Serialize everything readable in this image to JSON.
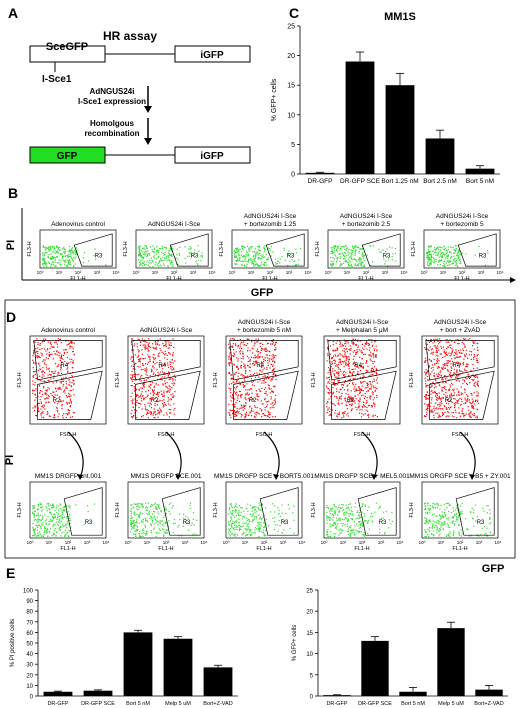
{
  "panels": {
    "A": {
      "label": "A",
      "title": "HR assay",
      "top_left": "SceGFP",
      "top_right": "iGFP",
      "site": "I-Sce1",
      "step1_line1": "AdNGUS24i",
      "step1_line2": "I-Sce1 expression",
      "step2_line1": "Homolgous",
      "step2_line2": "recombination",
      "bottom_left": "GFP",
      "bottom_right": "iGFP",
      "colors": {
        "gfp": "#22dd22",
        "outline": "#000000"
      }
    },
    "B": {
      "label": "B",
      "y_axis": "PI",
      "x_axis": "GFP",
      "plots": [
        {
          "title1": "Adenovirus control",
          "title2": "",
          "level": 0.15
        },
        {
          "title1": "AdNGUS24i I-Sce",
          "title2": "",
          "level": 0.55
        },
        {
          "title1": "AdNGUS24i I-Sce",
          "title2": "+ bortezomib 1.25",
          "level": 0.45
        },
        {
          "title1": "AdNGUS24i I-Sce",
          "title2": "+ bortezomib 2.5",
          "level": 0.3
        },
        {
          "title1": "AdNGUS24i I-Sce",
          "title2": "+ bortezomib 5",
          "level": 0.12
        }
      ],
      "gate": "R3",
      "ylabel": "FL3-H",
      "xlabel": "FL1-H",
      "ticks": [
        "10⁰",
        "10¹",
        "10²",
        "10³",
        "10⁴"
      ],
      "dot_color": "#33dd33"
    },
    "D": {
      "label": "D",
      "y_axis": "PI",
      "x_axis": "GFP",
      "top_plots": [
        {
          "title1": "Adenovirus control",
          "title2": ""
        },
        {
          "title1": "AdNGUS24i I-Sce",
          "title2": ""
        },
        {
          "title1": "AdNGUS24i I-Sce",
          "title2": "+ bortezomib 5 nM"
        },
        {
          "title1": "AdNGUS24i I-Sce",
          "title2": "+ Melphalan 5 μM"
        },
        {
          "title1": "AdNGUS24i I-Sce",
          "title2": "+ bort + ZvAD"
        }
      ],
      "bottom_titles": [
        "MM1S DRGFP cnt.001",
        "MM1S DRGFP SCE.001",
        "MM1S DRGFP SCE + BORT5.001",
        "MM1S DRGFP SCE + MEL5.001",
        "MM1S DRGFP SCE + B5 + ZY.001"
      ],
      "gates_top": [
        "R4",
        "R2"
      ],
      "gate_bottom": "R3",
      "top_ylabel": "FL3-H",
      "top_xlabel": "FSC-H",
      "bottom_ylabel": "FL3-H",
      "bottom_xlabel": "FL1-H",
      "red_color": "#ee1111",
      "green_color": "#33dd33"
    }
  },
  "chart_data": [
    {
      "id": "C",
      "type": "bar",
      "panel_label": "C",
      "title": "MM1S",
      "ylabel": "% GFP+ cells",
      "xlabel": "",
      "categories": [
        "DR-GFP",
        "DR-GFP SCE",
        "Bort 1.25 nM",
        "Bort 2.5 nM",
        "Bort 5 nM"
      ],
      "values": [
        0.2,
        19.0,
        15.0,
        6.0,
        0.9
      ],
      "errors": [
        0.1,
        1.6,
        2.0,
        1.4,
        0.5
      ],
      "ylim": [
        0,
        25
      ],
      "yticks": [
        "0",
        "5",
        "10",
        "15",
        "20",
        "25"
      ],
      "grid": false,
      "bar_color": "#000000"
    },
    {
      "id": "E1",
      "type": "bar",
      "panel_label": "E",
      "title": "",
      "ylabel": "% PI positive cells",
      "xlabel": "",
      "categories": [
        "DR-GFP",
        "DR-GFP SCE",
        "Bort 5 nM",
        "Melp 5 uM",
        "Bort+Z-VAD"
      ],
      "values": [
        4,
        5,
        60,
        54,
        27
      ],
      "errors": [
        0.6,
        0.8,
        2.0,
        2.0,
        2.0
      ],
      "ylim": [
        0,
        100
      ],
      "yticks": [
        "0",
        "10",
        "20",
        "30",
        "40",
        "50",
        "60",
        "70",
        "80",
        "90",
        "100"
      ],
      "grid": false,
      "bar_color": "#000000"
    },
    {
      "id": "E2",
      "type": "bar",
      "panel_label": "",
      "title": "",
      "ylabel": "% GFP+ cells",
      "xlabel": "",
      "categories": [
        "DR-GFP",
        "DR-GFP SCE",
        "Bort 5 nM",
        "Melp 5 uM",
        "Bort+Z-VAD"
      ],
      "values": [
        0.2,
        13.0,
        1.0,
        16.0,
        1.5
      ],
      "errors": [
        0.1,
        1.0,
        1.0,
        1.4,
        1.0
      ],
      "ylim": [
        0,
        25
      ],
      "yticks": [
        "0",
        "5",
        "10",
        "15",
        "20",
        "25"
      ],
      "grid": false,
      "bar_color": "#000000"
    }
  ]
}
